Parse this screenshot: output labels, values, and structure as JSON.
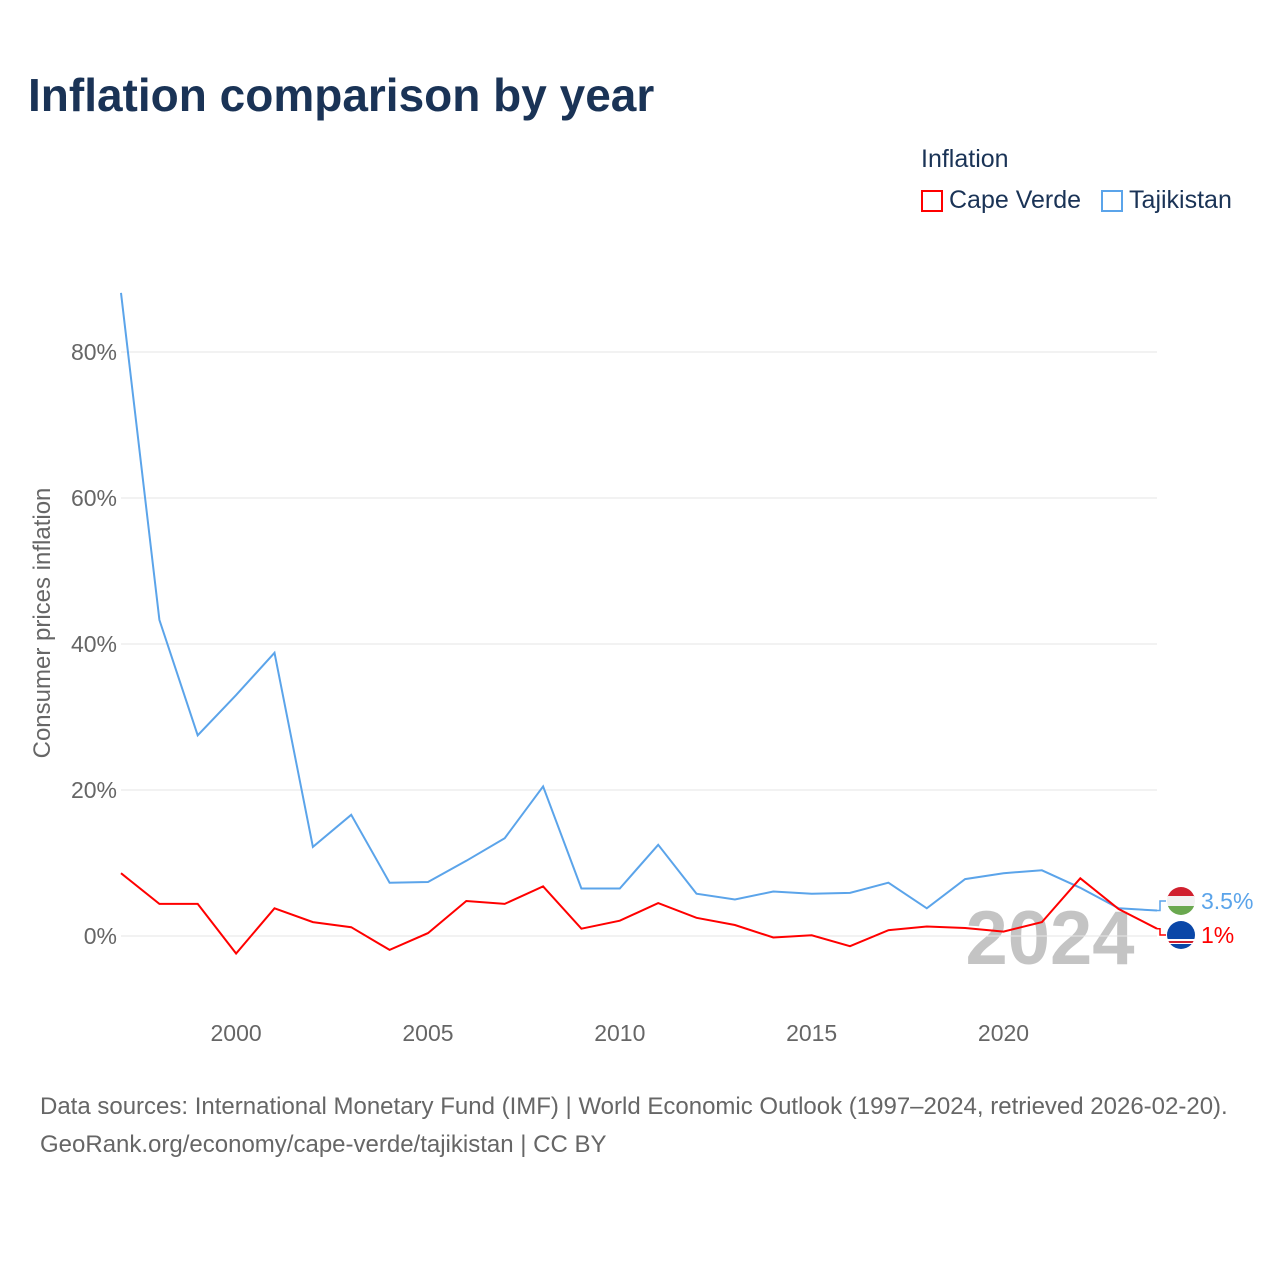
{
  "title": "Inflation comparison by year",
  "legend": {
    "title": "Inflation",
    "items": [
      {
        "name": "Cape Verde",
        "color": "#ff0000"
      },
      {
        "name": "Tajikistan",
        "color": "#5ba4ea"
      }
    ]
  },
  "watermark_year": "2024",
  "footer": {
    "sources": "Data sources: International Monetary Fund (IMF) | World Economic Outlook (1997–2024, retrieved 2026-02-20).",
    "link": "GeoRank.org/economy/cape-verde/tajikistan | CC BY"
  },
  "chart_data": {
    "type": "line",
    "ylabel": "Consumer prices inflation",
    "ylim": [
      -10,
      90
    ],
    "xlim": [
      1997,
      2024
    ],
    "yticks": [
      0,
      20,
      40,
      60,
      80
    ],
    "ytick_labels": [
      "0%",
      "20%",
      "40%",
      "60%",
      "80%"
    ],
    "xticks": [
      2000,
      2005,
      2010,
      2015,
      2020
    ],
    "xtick_labels": [
      "2000",
      "2005",
      "2010",
      "2015",
      "2020"
    ],
    "grid": true,
    "x": [
      1997,
      1998,
      1999,
      2000,
      2001,
      2002,
      2003,
      2004,
      2005,
      2006,
      2007,
      2008,
      2009,
      2010,
      2011,
      2012,
      2013,
      2014,
      2015,
      2016,
      2017,
      2018,
      2019,
      2020,
      2021,
      2022,
      2023,
      2024
    ],
    "series": [
      {
        "name": "Tajikistan",
        "color": "#5ba4ea",
        "end_label": "3.5%",
        "values": [
          88.1,
          43.3,
          27.5,
          33,
          38.8,
          12.2,
          16.6,
          7.3,
          7.4,
          10.3,
          13.4,
          20.5,
          6.5,
          6.5,
          12.5,
          5.8,
          5.0,
          6.1,
          5.8,
          5.9,
          7.3,
          3.8,
          7.8,
          8.6,
          9.0,
          6.6,
          3.8,
          3.5
        ]
      },
      {
        "name": "Cape Verde",
        "color": "#ff0000",
        "end_label": "1%",
        "values": [
          8.6,
          4.4,
          4.4,
          -2.4,
          3.8,
          1.9,
          1.2,
          -1.9,
          0.4,
          4.8,
          4.4,
          6.8,
          1.0,
          2.1,
          4.5,
          2.5,
          1.5,
          -0.2,
          0.1,
          -1.4,
          0.8,
          1.3,
          1.1,
          0.6,
          1.9,
          7.9,
          3.7,
          1.0
        ]
      }
    ]
  }
}
